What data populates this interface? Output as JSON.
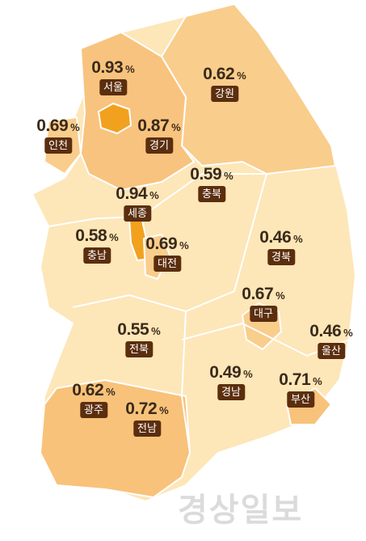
{
  "unit": "%",
  "watermark": "경상일보",
  "regions": [
    {
      "name": "서울",
      "value": 0.93
    },
    {
      "name": "강원",
      "value": 0.62
    },
    {
      "name": "인천",
      "value": 0.69
    },
    {
      "name": "경기",
      "value": 0.87
    },
    {
      "name": "충북",
      "value": 0.59
    },
    {
      "name": "세종",
      "value": 0.94
    },
    {
      "name": "충남",
      "value": 0.58
    },
    {
      "name": "대전",
      "value": 0.69
    },
    {
      "name": "경북",
      "value": 0.46
    },
    {
      "name": "대구",
      "value": 0.67
    },
    {
      "name": "전북",
      "value": 0.55
    },
    {
      "name": "울산",
      "value": 0.46
    },
    {
      "name": "경남",
      "value": 0.49
    },
    {
      "name": "부산",
      "value": 0.71
    },
    {
      "name": "광주",
      "value": 0.62
    },
    {
      "name": "전남",
      "value": 0.72
    }
  ]
}
